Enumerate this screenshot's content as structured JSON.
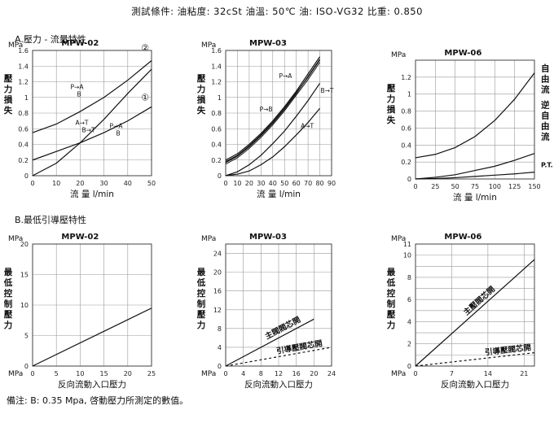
{
  "header": "測試條件: 油粘度: 32cSt  油溫: 50℃  油: ISO-VG32  比重: 0.850",
  "section_a": "A.壓力 - 流量特性",
  "section_b": "B.最低引導壓特性",
  "note": "備注: B: 0.35 Mpa, 啓動壓力所測定的數值。",
  "chart_data": [
    {
      "type": "line",
      "title": "MPW-02",
      "unit": "MPa",
      "ylabel": "壓力損失",
      "xlabel": "流 量 l/min",
      "xlim": [
        0,
        50
      ],
      "ylim": [
        0,
        1.6
      ],
      "xticks": [
        0,
        10,
        20,
        30,
        40,
        50
      ],
      "yticks": [
        0,
        0.2,
        0.4,
        0.6,
        0.8,
        1.0,
        1.2,
        1.4,
        1.6
      ],
      "series": [
        {
          "name": "P→A B",
          "x": [
            0,
            10,
            20,
            30,
            40,
            50
          ],
          "y": [
            0.55,
            0.66,
            0.82,
            1.0,
            1.22,
            1.47
          ]
        },
        {
          "name": "A→T B→T",
          "x": [
            0,
            10,
            20,
            30,
            40,
            50
          ],
          "y": [
            0.2,
            0.31,
            0.42,
            0.55,
            0.7,
            0.88
          ]
        },
        {
          "name": "P→A B",
          "x": [
            0,
            10,
            20,
            30,
            40,
            50
          ],
          "y": [
            0.0,
            0.16,
            0.42,
            0.72,
            1.05,
            1.36
          ]
        }
      ],
      "annotations": [
        "②",
        "①"
      ]
    },
    {
      "type": "line",
      "title": "MPW-03",
      "unit": "MPa",
      "ylabel": "壓力損失",
      "xlabel": "流 量 l/min",
      "xlim": [
        0,
        90
      ],
      "ylim": [
        0,
        1.6
      ],
      "xticks": [
        0,
        10,
        20,
        30,
        40,
        50,
        60,
        70,
        80,
        90
      ],
      "yticks": [
        0,
        0.2,
        0.4,
        0.6,
        0.8,
        1.0,
        1.2,
        1.4,
        1.6
      ],
      "series": [
        {
          "name": "P→B",
          "x": [
            0,
            10,
            20,
            30,
            40,
            50,
            60,
            70,
            80
          ],
          "y": [
            0.18,
            0.26,
            0.38,
            0.52,
            0.68,
            0.86,
            1.06,
            1.26,
            1.48
          ]
        },
        {
          "name": "P→A",
          "x": [
            0,
            10,
            20,
            30,
            40,
            50,
            60,
            70,
            80
          ],
          "y": [
            0.2,
            0.28,
            0.4,
            0.54,
            0.7,
            0.88,
            1.08,
            1.3,
            1.52
          ]
        },
        {
          "name": "B→T",
          "x": [
            0,
            10,
            20,
            30,
            40,
            50,
            60,
            70,
            80
          ],
          "y": [
            0.0,
            0.05,
            0.14,
            0.26,
            0.41,
            0.57,
            0.76,
            0.96,
            1.18
          ]
        },
        {
          "name": "A→T",
          "x": [
            0,
            10,
            20,
            30,
            40,
            50,
            60,
            70,
            80
          ],
          "y": [
            0.0,
            0.02,
            0.06,
            0.14,
            0.24,
            0.37,
            0.52,
            0.68,
            0.86
          ]
        }
      ]
    },
    {
      "type": "line",
      "title": "MPW-06",
      "unit": "MPa",
      "ylabel": "壓力損失",
      "xlabel": "流 量 l/min",
      "xlim": [
        0,
        150
      ],
      "ylim": [
        0,
        1.4
      ],
      "xticks": [
        0,
        25,
        50,
        75,
        100,
        125,
        150
      ],
      "yticks": [
        0,
        0.2,
        0.4,
        0.6,
        0.8,
        1.0,
        1.2
      ],
      "series": [
        {
          "name": "自由流",
          "x": [
            0,
            25,
            50,
            75,
            100,
            125,
            150
          ],
          "y": [
            0.25,
            0.29,
            0.37,
            0.5,
            0.69,
            0.94,
            1.25
          ]
        },
        {
          "name": "逆自由流",
          "x": [
            0,
            25,
            50,
            75,
            100,
            125,
            150
          ],
          "y": [
            0.0,
            0.02,
            0.05,
            0.1,
            0.15,
            0.22,
            0.3
          ]
        },
        {
          "name": "P.T.",
          "x": [
            0,
            25,
            50,
            75,
            100,
            125,
            150
          ],
          "y": [
            0.0,
            0.005,
            0.015,
            0.03,
            0.045,
            0.06,
            0.08
          ]
        }
      ]
    },
    {
      "type": "line",
      "title": "MPW-02",
      "unit": "MPa",
      "ylabel": "最低控制壓力",
      "xlabel": "反向流動入口壓力",
      "xlabel_unit": "MPa",
      "xlim": [
        0,
        25
      ],
      "ylim": [
        0,
        20
      ],
      "xticks": [
        0,
        5,
        10,
        15,
        20,
        25
      ],
      "yticks": [
        0,
        5,
        10,
        15,
        20
      ],
      "series": [
        {
          "name": "",
          "x": [
            0,
            25
          ],
          "y": [
            0,
            9.5
          ]
        }
      ]
    },
    {
      "type": "line",
      "title": "MPW-03",
      "unit": "MPa",
      "ylabel": "最低控制壓力",
      "xlabel": "反向流動入口壓力",
      "xlabel_unit": "MPa",
      "xlim": [
        0,
        24
      ],
      "ylim": [
        0,
        26
      ],
      "xticks": [
        0,
        4,
        8,
        12,
        16,
        20,
        24
      ],
      "yticks": [
        0,
        4,
        8,
        12,
        16,
        20,
        24
      ],
      "series": [
        {
          "name": "主閥閥芯開",
          "x": [
            0,
            20
          ],
          "y": [
            0,
            10
          ]
        },
        {
          "name": "引導壓閥芯開",
          "x": [
            0,
            24
          ],
          "y": [
            0,
            4
          ]
        }
      ]
    },
    {
      "type": "line",
      "title": "MPW-06",
      "unit": "MPa",
      "ylabel": "最低控制壓力",
      "xlabel": "反向流動入口壓力",
      "xlabel_unit": "MPa",
      "xlim": [
        0,
        23
      ],
      "ylim": [
        0,
        11
      ],
      "xticks": [
        0,
        7,
        14,
        21
      ],
      "xtick_labels": [
        "0",
        "7",
        "14",
        "21"
      ],
      "yticks": [
        0,
        1,
        2,
        3,
        4,
        5,
        6,
        7,
        8,
        9,
        10,
        11
      ],
      "ytick_labels": [
        "0",
        "",
        "2",
        "",
        "4",
        "",
        "6",
        "",
        "8",
        "",
        "10",
        "11"
      ],
      "series": [
        {
          "name": "主壓閥芯開",
          "x": [
            0,
            23
          ],
          "y": [
            0,
            9.6
          ]
        },
        {
          "name": "引導壓閥芯開",
          "x": [
            0,
            23
          ],
          "y": [
            0,
            1.2
          ]
        }
      ]
    }
  ]
}
